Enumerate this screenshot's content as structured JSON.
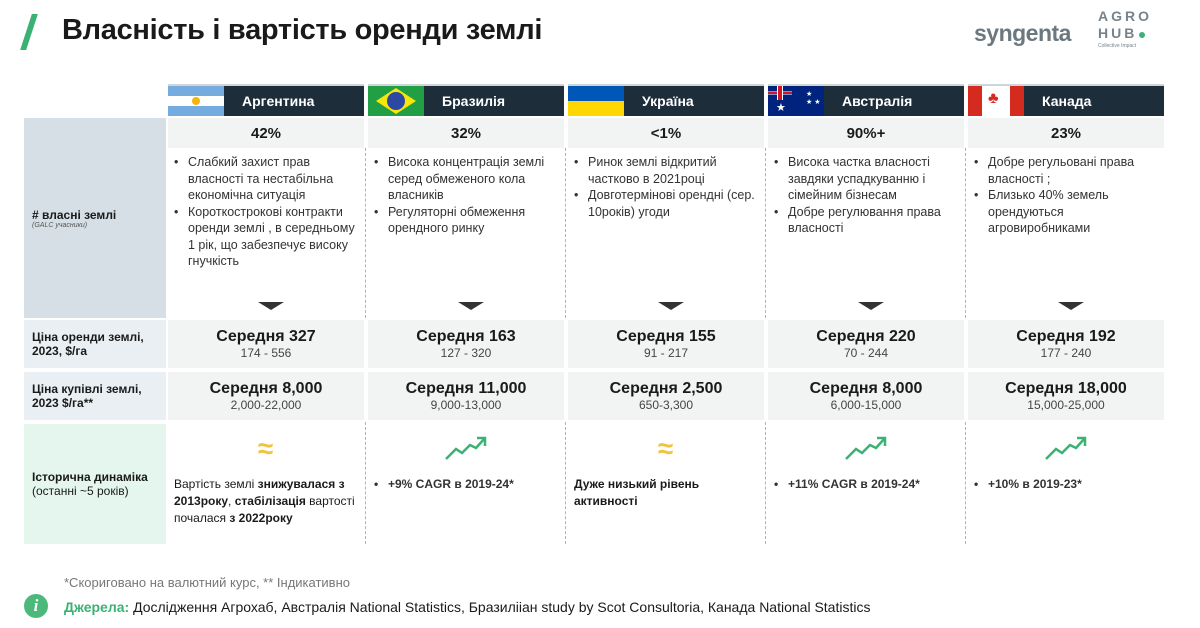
{
  "header": {
    "title": "Власність і вартість оренди землі",
    "logo_syngenta": "syngenta",
    "logo_agrohub": [
      "AGRO",
      "HUB"
    ],
    "logo_tagline": "Collective Impact"
  },
  "rows": {
    "ownership": "# власні землі",
    "ownership_note": "(GALC учасники)",
    "rent": "Ціна оренди землі, 2023, $/га",
    "purchase": "Ціна купівлі землі, 2023 $/га**",
    "dynamics_title": "Історична динаміка",
    "dynamics_note": "(останні ~5 років)"
  },
  "colors": {
    "accent": "#3bb273",
    "header_bg": "#1d2d3a",
    "neutral_trend": "#f0c43c"
  },
  "countries": [
    {
      "name": "Аргентина",
      "flag": "argentina",
      "ownership": "42%",
      "bullets": [
        "Слабкий захист прав власності та нестабільна економічна ситуація",
        "Короткострокові контракти оренди землі , в середньому 1 рік, що забезпечує високу гнучкість"
      ],
      "rent": "Середня 327",
      "rent_range": "174 - 556",
      "price": "Середня 8,000",
      "price_range": "2,000-22,000",
      "trend": "stable-icon",
      "dyn": [
        {
          "t": "Вартість землі ",
          "b": false
        },
        {
          "t": "знижувалася з 2013року",
          "b": true
        },
        {
          "t": ", ",
          "b": false
        },
        {
          "t": "стабілізація",
          "b": true
        },
        {
          "t": " вартості  почалася ",
          "b": false
        },
        {
          "t": "з 2022року",
          "b": true
        }
      ]
    },
    {
      "name": "Бразилія",
      "flag": "brazil",
      "ownership": "32%",
      "bullets": [
        "Висока концентрація землі серед обмеженого кола власників",
        "Регуляторні обмеження орендного ринку"
      ],
      "rent": "Середня 163",
      "rent_range": "127 - 320",
      "price": "Середня 11,000",
      "price_range": "9,000-13,000",
      "trend": "trend-up-icon",
      "dyn_bullet": "+9% CAGR в 2019-24*"
    },
    {
      "name": "Україна",
      "flag": "ukraine",
      "ownership": "<1%",
      "bullets": [
        "Ринок землі відкритий частково в 2021році",
        "Довготермінові орендні (сер. 10років) угоди"
      ],
      "rent": "Середня 155",
      "rent_range": "91 - 217",
      "price": "Середня 2,500",
      "price_range": "650-3,300",
      "trend": "stable-icon",
      "dyn": [
        {
          "t": "Дуже низький рівень активності",
          "b": true
        }
      ]
    },
    {
      "name": "Австралія",
      "flag": "australia",
      "ownership": "90%+",
      "bullets": [
        "Висока частка власності завдяки успадкуванню і сімейним бізнесам",
        "Добре регулювання права власності"
      ],
      "rent": "Середня 220",
      "rent_range": "70 - 244",
      "price": "Середня 8,000",
      "price_range": "6,000-15,000",
      "trend": "trend-up-icon",
      "dyn_bullet": "+11% CAGR в 2019-24*"
    },
    {
      "name": "Канада",
      "flag": "canada",
      "ownership": "23%",
      "bullets": [
        "Добре регульовані права власності ;",
        "Близько 40% земель орендуються агровиробниками"
      ],
      "rent": "Середня 192",
      "rent_range": "177 - 240",
      "price": "Середня 18,000",
      "price_range": "15,000-25,000",
      "trend": "trend-up-icon",
      "dyn_bullet": "+10% в 2019-23*"
    }
  ],
  "footer": {
    "note": "*Скориговано на валютний курс, ** Індикативно",
    "sources_label": "Джерела:",
    "sources": " Дослідження Агрохаб, Австралія National Statistics, Бразиліiан study by Scot Consultoria, Канада National Statistics"
  }
}
